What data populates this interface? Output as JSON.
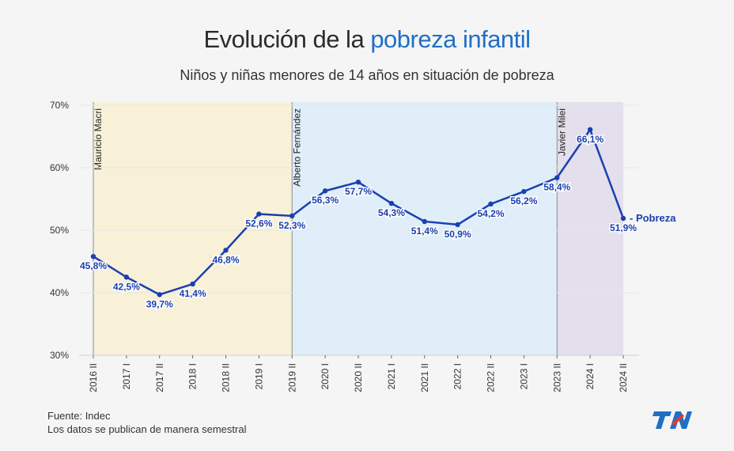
{
  "header": {
    "title_prefix": "Evolución de la ",
    "title_highlight": "pobreza infantil",
    "subtitle": "Niños y niñas menores de 14 años en situación de pobreza"
  },
  "footer": {
    "source": "Fuente: Indec",
    "note": "Los datos se publican de manera semestral"
  },
  "logo": {
    "text": "TN",
    "color": "#1f6fc5",
    "accent": "#e03a2f"
  },
  "chart_data": {
    "type": "line",
    "categories": [
      "2016 II",
      "2017 I",
      "2017 II",
      "2018 I",
      "2018 II",
      "2019 I",
      "2019 II",
      "2020 I",
      "2020 II",
      "2021 I",
      "2021 II",
      "2022 I",
      "2022 II",
      "2023 I",
      "2023 II",
      "2024 I",
      "2024 II"
    ],
    "series": [
      {
        "name": "Pobreza",
        "values": [
          45.8,
          42.5,
          39.7,
          41.4,
          46.8,
          52.6,
          52.3,
          56.3,
          57.7,
          54.3,
          51.4,
          50.9,
          54.2,
          56.2,
          58.4,
          66.1,
          51.9
        ],
        "labels": [
          "45,8%",
          "42,5%",
          "39,7%",
          "41,4%",
          "46,8%",
          "52,6%",
          "52,3%",
          "56,3%",
          "57,7%",
          "54,3%",
          "51,4%",
          "50,9%",
          "54,2%",
          "56,2%",
          "58,4%",
          "66,1%",
          "51,9%"
        ],
        "color": "#1a3fb0"
      }
    ],
    "y_ticks": [
      30,
      40,
      50,
      60,
      70
    ],
    "y_tick_labels": [
      "30%",
      "40%",
      "50%",
      "60%",
      "70%"
    ],
    "ylim": [
      30,
      70
    ],
    "grid": true,
    "periods": [
      {
        "name": "Mauricio Macri",
        "start": "2016 II",
        "end": "2019 II",
        "color": "#f8f1d8"
      },
      {
        "name": "Alberto Fernández",
        "start": "2019 II",
        "end": "2023 II",
        "color": "#dfeef8"
      },
      {
        "name": "Javier Milei",
        "start": "2023 II",
        "end": "2024 II",
        "color": "#e4dfec"
      }
    ]
  }
}
